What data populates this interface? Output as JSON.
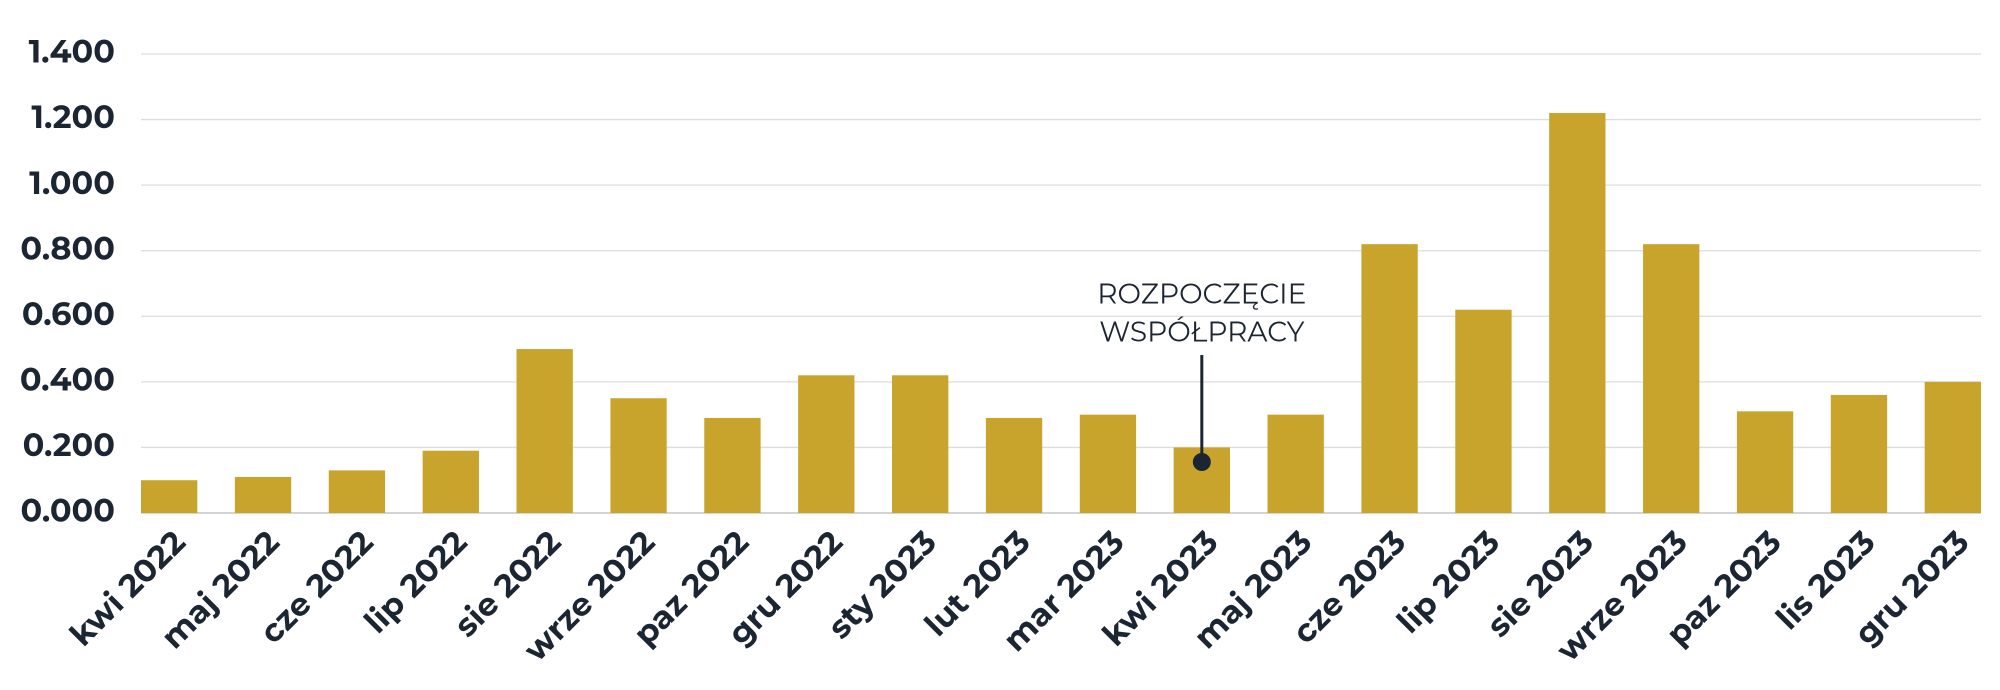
{
  "chart_data": {
    "type": "bar",
    "categories": [
      "kwi 2022",
      "maj 2022",
      "cze 2022",
      "lip 2022",
      "sie 2022",
      "wrze 2022",
      "paz 2022",
      "gru 2022",
      "sty 2023",
      "lut 2023",
      "mar 2023",
      "kwi 2023",
      "maj 2023",
      "cze 2023",
      "lip 2023",
      "sie 2023",
      "wrze 2023",
      "paz 2023",
      "lis 2023",
      "gru 2023"
    ],
    "values": [
      0.1,
      0.11,
      0.13,
      0.19,
      0.5,
      0.35,
      0.29,
      0.42,
      0.42,
      0.29,
      0.3,
      0.2,
      0.3,
      0.82,
      0.62,
      1.22,
      0.82,
      0.31,
      0.36,
      0.4
    ],
    "color": "#c9a42c",
    "ylim": [
      0,
      1.4
    ],
    "yticks": [
      {
        "value": 0,
        "label": "0.000"
      },
      {
        "value": 0.2,
        "label": "0.200"
      },
      {
        "value": 0.4,
        "label": "0.400"
      },
      {
        "value": 0.6,
        "label": "0.600"
      },
      {
        "value": 0.8,
        "label": "0.800"
      },
      {
        "value": 1.0,
        "label": "1.000"
      },
      {
        "value": 1.2,
        "label": "1.200"
      },
      {
        "value": 1.4,
        "label": "1.400"
      }
    ],
    "grid": true,
    "annotation": [
      "ROZPOCZĘCIE",
      "WSPÓŁPRACY"
    ]
  }
}
